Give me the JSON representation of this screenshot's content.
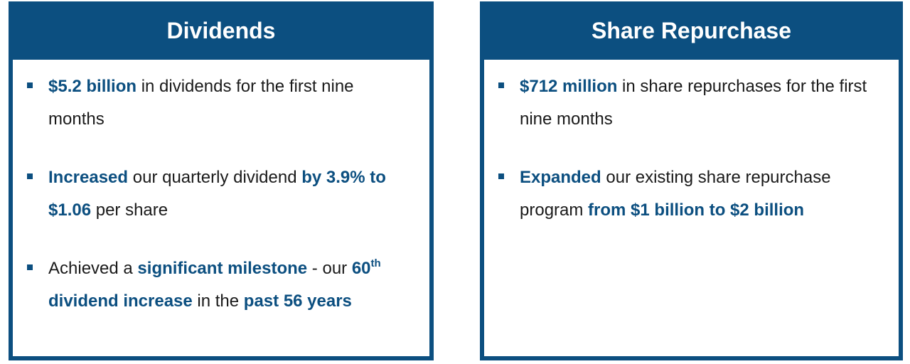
{
  "dividends": {
    "title": "Dividends",
    "bullet1": {
      "hl1": "$5.2 billion",
      "t1": " in dividends for the first nine months"
    },
    "bullet2": {
      "hl1": "Increased",
      "t1": " our quarterly dividend ",
      "hl2": "by 3.9% to $1.06",
      "t2": " per share"
    },
    "bullet3": {
      "t1": "Achieved a ",
      "hl1": "significant milestone",
      "t2": " - our ",
      "hl2": "60",
      "sup": "th",
      "hl3": " dividend increase",
      "t3": " in the ",
      "hl4": "past 56 years"
    }
  },
  "share_repurchase": {
    "title": "Share Repurchase",
    "bullet1": {
      "hl1": "$712 million",
      "t1": " in share repurchases for the first nine months"
    },
    "bullet2": {
      "hl1": "Expanded",
      "t1": " our existing share repurchase program ",
      "hl2": "from $1 billion to $2 billion"
    }
  },
  "colors": {
    "accent": "#0c4f80",
    "text": "#1a1a1a"
  },
  "icons": {
    "bullet": "square-bullet-icon"
  }
}
